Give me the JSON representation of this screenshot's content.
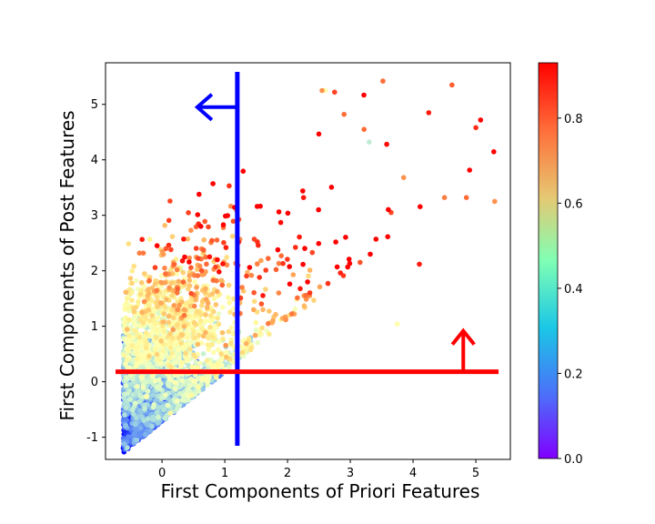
{
  "chart_data": {
    "type": "scatter",
    "xlabel": "First Components of Priori Features",
    "ylabel": "First Components of Post Features",
    "xlim": [
      -0.9,
      5.55
    ],
    "ylim": [
      -1.4,
      5.75
    ],
    "x_ticks": [
      0,
      1,
      2,
      3,
      4,
      5
    ],
    "y_ticks": [
      -1,
      0,
      1,
      2,
      3,
      4,
      5
    ],
    "colorbar": {
      "range": [
        0.0,
        0.93
      ],
      "ticks": [
        0.0,
        0.2,
        0.4,
        0.6,
        0.8
      ],
      "colormap": "rainbow"
    },
    "vertical_threshold": {
      "x": 1.2,
      "color": "#0000ff",
      "arrow_direction": "left",
      "arrow_y": 4.95
    },
    "horizontal_threshold": {
      "y": 0.18,
      "color": "#ff0000",
      "arrow_direction": "up",
      "arrow_x": 4.8
    },
    "point_cloud": {
      "description_of_density": "dense near origin, spreading up-right",
      "approx_count": 3000,
      "x_range": [
        -0.62,
        5.3
      ],
      "y_range": [
        -1.28,
        5.42
      ],
      "value_trend": "low values (violet/blue) at bottom-left, high values (red/orange) toward top and right"
    },
    "sample_points": [
      {
        "x": 4.62,
        "y": 5.35,
        "v": 0.82
      },
      {
        "x": 3.52,
        "y": 5.42,
        "v": 0.8
      },
      {
        "x": 2.55,
        "y": 5.25,
        "v": 0.75
      },
      {
        "x": 2.75,
        "y": 5.22,
        "v": 0.85
      },
      {
        "x": 5.0,
        "y": 4.58,
        "v": 0.88
      },
      {
        "x": 4.25,
        "y": 4.85,
        "v": 0.9
      },
      {
        "x": 5.3,
        "y": 3.25,
        "v": 0.75
      },
      {
        "x": 4.5,
        "y": 3.32,
        "v": 0.78
      },
      {
        "x": 4.85,
        "y": 3.32,
        "v": 0.8
      },
      {
        "x": 4.1,
        "y": 2.12,
        "v": 0.9
      },
      {
        "x": 3.75,
        "y": 1.04,
        "v": 0.5
      },
      {
        "x": 3.85,
        "y": 3.68,
        "v": 0.75
      },
      {
        "x": 3.58,
        "y": 4.28,
        "v": 0.92
      },
      {
        "x": 3.22,
        "y": 4.55,
        "v": 0.8
      },
      {
        "x": 3.3,
        "y": 4.32,
        "v": 0.35
      },
      {
        "x": 2.9,
        "y": 4.82,
        "v": 0.8
      },
      {
        "x": 3.65,
        "y": 3.05,
        "v": 0.85
      },
      {
        "x": 2.6,
        "y": 5.25,
        "v": 0.5
      }
    ]
  }
}
